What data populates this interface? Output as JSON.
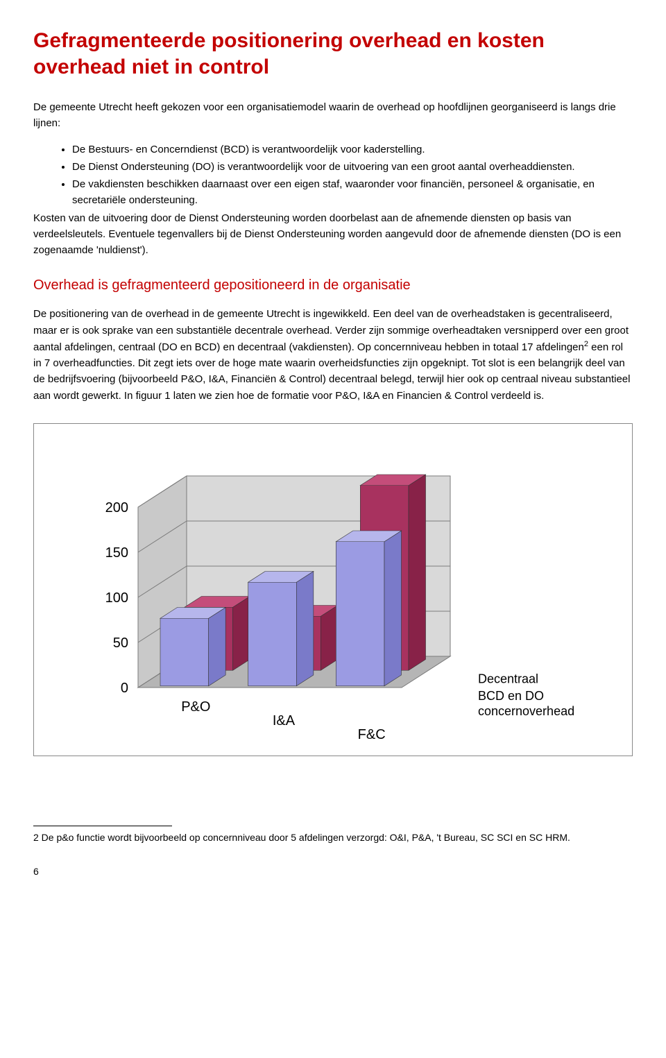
{
  "heading": "Gefragmenteerde positionering overhead en kosten overhead niet in control",
  "intro": "De gemeente Utrecht heeft gekozen voor een organisatiemodel waarin de overhead op hoofdlijnen georganiseerd is langs drie lijnen:",
  "bullets": [
    "De Bestuurs- en Concerndienst (BCD) is verantwoordelijk voor kaderstelling.",
    "De Dienst Ondersteuning (DO) is verantwoordelijk voor de uitvoering van een groot aantal overheaddiensten.",
    "De vakdiensten beschikken daarnaast over een eigen staf, waaronder voor financiën, personeel & organisatie, en secretariële ondersteuning."
  ],
  "after_bullets": "Kosten van de uitvoering door de Dienst Ondersteuning worden doorbelast aan de afnemende diensten op basis van verdeelsleutels. Eventuele tegenvallers bij de Dienst Ondersteuning worden aangevuld door de afnemende diensten (DO is een zogenaamde 'nuldienst').",
  "subheading": "Overhead is gefragmenteerd gepositioneerd in de organisatie",
  "body1_a": "De positionering van de overhead in de gemeente Utrecht is ingewikkeld. Een deel van de overheadstaken is gecentraliseerd, maar er is ook sprake van een substantiële decentrale overhead. Verder zijn sommige overheadtaken versnipperd over een groot aantal afdelingen, centraal (DO en BCD) en decentraal (vakdiensten). Op concernniveau hebben in totaal 17 afdelingen",
  "body1_sup": "2",
  "body1_b": " een rol in 7 overheadfuncties. Dit zegt iets over de hoge mate waarin overheidsfuncties zijn opgeknipt. Tot slot is een belangrijk deel van de bedrijfsvoering (bijvoorbeeld P&O, I&A, Financiën & Control) decentraal belegd, terwijl hier ook op centraal niveau substantieel aan wordt gewerkt. In figuur 1 laten we zien hoe de formatie voor P&O, I&A en Financien & Control verdeeld is.",
  "chart": {
    "type": "bar-3d",
    "categories": [
      "P&O",
      "I&A",
      "F&C"
    ],
    "series": [
      {
        "name": "BCD en DO concernoverhead",
        "values": [
          75,
          115,
          160
        ]
      },
      {
        "name": "Decentraal",
        "values": [
          70,
          60,
          205
        ]
      }
    ],
    "series_labels_right": [
      "Decentraal",
      "BCD en DO\nconcernoverhead"
    ],
    "y_ticks": [
      0,
      50,
      100,
      150,
      200
    ],
    "y_max": 200,
    "colors": {
      "front_bar_face": "#9b9be3",
      "front_bar_top": "#b6b6ec",
      "front_bar_side": "#7a7ac9",
      "back_bar_face": "#a8325f",
      "back_bar_top": "#c44d7a",
      "back_bar_side": "#882248",
      "wall_left": "#c9c9c9",
      "wall_back": "#d9d9d9",
      "floor": "#b5b5b5",
      "grid": "#7a7a7a",
      "axis_text": "#000000",
      "label_text": "#000000"
    },
    "axis_font_size": 20,
    "label_font_size": 18
  },
  "footnote_num": "2",
  "footnote_text": " De p&o functie wordt bijvoorbeeld op concernniveau door 5 afdelingen verzorgd: O&I, P&A, 't Bureau, SC SCI en SC HRM.",
  "page_number": "6"
}
